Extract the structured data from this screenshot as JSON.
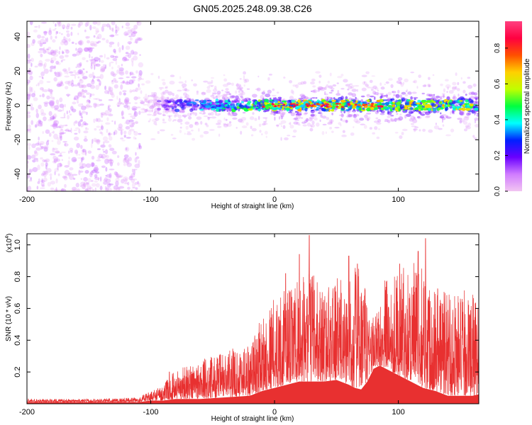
{
  "title": "GN05.2025.248.09.38.C26",
  "chart_data": [
    {
      "type": "heatmap",
      "name": "spectrogram",
      "title": "GN05.2025.248.09.38.C26",
      "xlabel": "Height of straight line (km)",
      "ylabel": "Frequency (Hz)",
      "xlim": [
        -200,
        165
      ],
      "ylim": [
        -50,
        49
      ],
      "xticks": [
        -200,
        -100,
        0,
        100
      ],
      "xtick_labels": [
        "-200",
        "-100",
        "0",
        "100"
      ],
      "yticks": [
        -40,
        -20,
        0,
        20,
        40
      ],
      "ytick_labels": [
        "-40",
        "-20",
        "0",
        "20",
        "40"
      ],
      "colorbar": {
        "label": "Normalized spectral amplitude",
        "range": [
          0,
          0.95
        ],
        "ticks": [
          0,
          0.2,
          0.4,
          0.6,
          0.8
        ],
        "tick_labels": [
          "0.0",
          "0.2",
          "0.4",
          "0.6",
          "0.8"
        ],
        "colors": [
          "#f2c6f2",
          "#d07cff",
          "#6a00ff",
          "#0020ff",
          "#00ffff",
          "#00ff40",
          "#c0ff00",
          "#ffd000",
          "#ff5000",
          "#ff0040",
          "#ff4080"
        ]
      },
      "description_series": [
        {
          "name": "noise region",
          "x_range": [
            -200,
            -108
          ],
          "freq_range": [
            -50,
            49
          ],
          "amplitude": 0.08
        },
        {
          "name": "signal band",
          "x_range": [
            -108,
            165
          ],
          "center_freq": 0,
          "amplitude_peak": 0.9
        }
      ]
    },
    {
      "type": "line",
      "name": "snr",
      "xlabel": "Height of straight line (km)",
      "ylabel": "SNR (10 * v/v)",
      "multiplier_label": "(x10",
      "multiplier_exp": "4",
      "multiplier_close": ")",
      "xlim": [
        -200,
        165
      ],
      "ylim": [
        0,
        1.07
      ],
      "xticks": [
        -200,
        -100,
        0,
        100
      ],
      "xtick_labels": [
        "-200",
        "-100",
        "0",
        "100"
      ],
      "yticks": [
        0.2,
        0.4,
        0.6,
        0.8,
        1.0
      ],
      "ytick_labels": [
        "0.2",
        "0.4",
        "0.6",
        "0.8",
        "1.0"
      ],
      "color": "#e83030",
      "envelope": {
        "x": [
          -200,
          -150,
          -110,
          -100,
          -90,
          -80,
          -60,
          -40,
          -20,
          -10,
          0,
          10,
          20,
          30,
          40,
          50,
          60,
          65,
          70,
          75,
          80,
          85,
          90,
          100,
          110,
          120,
          130,
          140,
          150,
          160,
          165
        ],
        "low": [
          0.01,
          0.01,
          0.01,
          0.02,
          0.02,
          0.03,
          0.03,
          0.04,
          0.05,
          0.08,
          0.1,
          0.12,
          0.14,
          0.14,
          0.14,
          0.15,
          0.12,
          0.1,
          0.09,
          0.14,
          0.22,
          0.24,
          0.22,
          0.18,
          0.14,
          0.1,
          0.08,
          0.05,
          0.05,
          0.05,
          0.06
        ],
        "high": [
          0.03,
          0.03,
          0.04,
          0.08,
          0.12,
          0.22,
          0.28,
          0.33,
          0.4,
          0.55,
          0.68,
          0.72,
          0.78,
          0.85,
          0.72,
          0.8,
          0.75,
          0.9,
          0.82,
          0.7,
          0.55,
          0.62,
          0.82,
          0.84,
          0.9,
          0.86,
          0.8,
          0.75,
          0.72,
          0.7,
          0.6
        ]
      },
      "peaks": [
        {
          "x": 28,
          "y": 1.06
        },
        {
          "x": 60,
          "y": 0.93
        },
        {
          "x": 67,
          "y": 0.88
        },
        {
          "x": 101,
          "y": 0.88
        },
        {
          "x": 122,
          "y": 1.04
        },
        {
          "x": 116,
          "y": 0.96
        },
        {
          "x": 20,
          "y": 0.94
        },
        {
          "x": 9,
          "y": 0.82
        },
        {
          "x": -85,
          "y": 0.2
        }
      ]
    }
  ]
}
